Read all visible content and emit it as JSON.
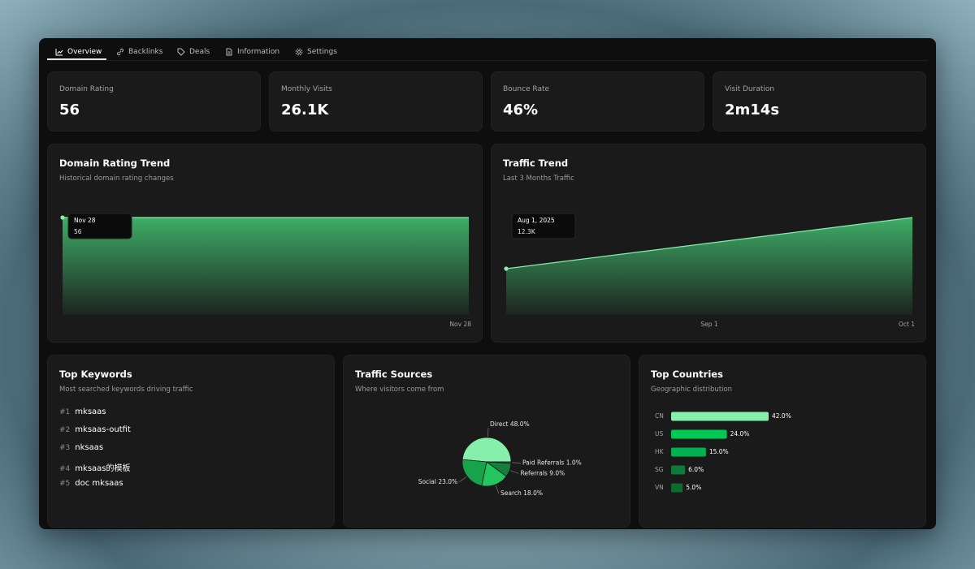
{
  "tabs": [
    "Overview",
    "Backlinks",
    "Deals",
    "Information",
    "Settings"
  ],
  "stats": [
    {
      "label": "Domain Rating",
      "value": "56"
    },
    {
      "label": "Monthly Visits",
      "value": "26.1K"
    },
    {
      "label": "Bounce Rate",
      "value": "46%"
    },
    {
      "label": "Visit Duration",
      "value": "2m14s"
    }
  ],
  "chart_data": [
    {
      "type": "area",
      "title": "Domain Rating Trend",
      "subtitle": "Historical domain rating changes",
      "x": [
        null,
        "Nov 28"
      ],
      "values": [
        56,
        56
      ],
      "color": "#86efac",
      "tooltip": {
        "x": "Nov 28",
        "value": "56"
      }
    },
    {
      "type": "area",
      "title": "Traffic Trend",
      "subtitle": "Last 3 Months Traffic",
      "x": [
        null,
        "Sep 1",
        "Oct 1"
      ],
      "values": [
        12300,
        19100,
        25900
      ],
      "color": "#86efac",
      "tooltip": {
        "x": "Aug 1, 2025",
        "value": "12.3K"
      }
    },
    {
      "type": "pie",
      "title": "Traffic Sources",
      "subtitle": "Where visitors come from",
      "categories": [
        "Direct",
        "Social",
        "Search",
        "Referrals",
        "Paid Referrals"
      ],
      "values": [
        48,
        23,
        18,
        9,
        1
      ],
      "value_labels": [
        "48.0%",
        "23.0%",
        "18.0%",
        "9.0%",
        "1.0%"
      ],
      "colors": [
        "#86efac",
        "#16a34a",
        "#22c55e",
        "#15803d",
        "#166534"
      ]
    },
    {
      "type": "bar",
      "title": "Top Countries",
      "subtitle": "Geographic distribution",
      "categories": [
        "CN",
        "US",
        "HK",
        "SG",
        "VN"
      ],
      "values": [
        42,
        24,
        15,
        6,
        5
      ],
      "value_labels": [
        "42.0%",
        "24.0%",
        "15.0%",
        "6.0%",
        "5.0%"
      ],
      "colors": [
        "#86efac",
        "#00c853",
        "#00b14f",
        "#0f7a3a",
        "#0d6b30"
      ]
    }
  ],
  "keywords": {
    "title": "Top Keywords",
    "subtitle": "Most searched keywords driving traffic",
    "items": [
      {
        "rank": "#1",
        "keyword": "mksaas"
      },
      {
        "rank": "#2",
        "keyword": "mksaas-outfit"
      },
      {
        "rank": "#3",
        "keyword": "nksaas"
      },
      {
        "rank": "#4",
        "keyword": "mksaas的模板"
      },
      {
        "rank": "#5",
        "keyword": "doc mksaas"
      }
    ]
  }
}
